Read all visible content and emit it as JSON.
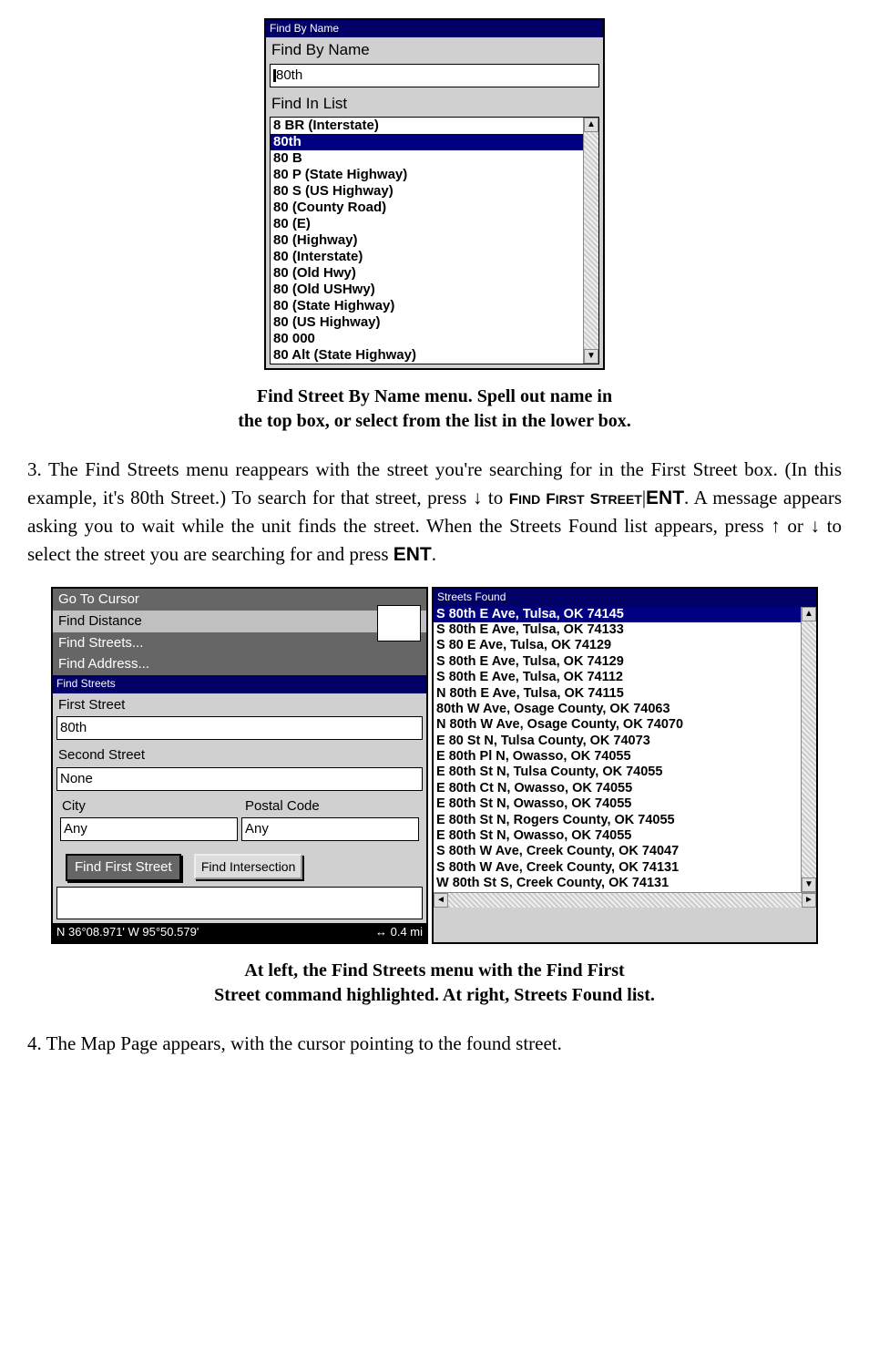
{
  "findByName": {
    "title": "Find By Name",
    "heading": "Find By Name",
    "input": "80th",
    "listLabel": "Find In List",
    "items": [
      {
        "t": "8 BR (Interstate)",
        "sel": false
      },
      {
        "t": "80th",
        "sel": true
      },
      {
        "t": "80  B",
        "sel": false
      },
      {
        "t": "80  P (State Highway)",
        "sel": false
      },
      {
        "t": "80  S (US Highway)",
        "sel": false
      },
      {
        "t": "80 (County Road)",
        "sel": false
      },
      {
        "t": "80 (E)",
        "sel": false
      },
      {
        "t": "80 (Highway)",
        "sel": false
      },
      {
        "t": "80 (Interstate)",
        "sel": false
      },
      {
        "t": "80 (Old Hwy)",
        "sel": false
      },
      {
        "t": "80 (Old USHwy)",
        "sel": false
      },
      {
        "t": "80 (State Highway)",
        "sel": false
      },
      {
        "t": "80 (US Highway)",
        "sel": false
      },
      {
        "t": "80 000",
        "sel": false
      },
      {
        "t": "80 Alt (State Highway)",
        "sel": false
      }
    ]
  },
  "caption1_l1": "Find Street By Name menu. Spell out name in",
  "caption1_l2": "the top box, or select from the list in the lower box.",
  "para3_a": "3. The Find Streets menu reappears with the street you're searching for in the First Street box. (In this example, it's 80th Street.) To search for that street, press ↓ to ",
  "para3_key1a": "F",
  "para3_key1b": "IND",
  "para3_key2a": " F",
  "para3_key2b": "IRST",
  "para3_key3a": " S",
  "para3_key3b": "TREET",
  "para3_b": "|",
  "para3_key4": "ENT",
  "para3_c": ".  A message appears asking you to wait while the unit finds the street. When the Streets Found list appears, press ↑ or ↓ to select the street you are searching for and press ",
  "para3_key5": "ENT",
  "para3_d": ".",
  "findStreets": {
    "menuItems": [
      {
        "t": "Go To Cursor",
        "cls": "highlight"
      },
      {
        "t": "Find Distance",
        "cls": ""
      },
      {
        "t": "Find Streets...",
        "cls": "highlight"
      },
      {
        "t": "Find Address...",
        "cls": "highlight"
      }
    ],
    "panelTitle": "Find Streets",
    "firstStreetLabel": "First Street",
    "firstStreetValue": "80th",
    "secondStreetLabel": "Second Street",
    "secondStreetValue": "None",
    "cityLabel": "City",
    "postalLabel": "Postal Code",
    "cityValue": "Any",
    "postalValue": "Any",
    "findFirstBtn": "Find First Street",
    "findIntersectBtn": "Find Intersection",
    "statusLeft": "N    36°08.971'    W    95°50.579'",
    "statusRight": "↔     0.4 mi"
  },
  "streetsFound": {
    "title": "Streets Found",
    "items": [
      {
        "t": "S 80th E Ave, Tulsa, OK 74145",
        "sel": true
      },
      {
        "t": "S 80th E Ave, Tulsa, OK 74133",
        "sel": false
      },
      {
        "t": "S 80 E Ave, Tulsa, OK 74129",
        "sel": false
      },
      {
        "t": "S 80th E Ave, Tulsa, OK 74129",
        "sel": false
      },
      {
        "t": "S 80th E Ave, Tulsa, OK 74112",
        "sel": false
      },
      {
        "t": "N 80th E Ave, Tulsa, OK 74115",
        "sel": false
      },
      {
        "t": "80th W Ave, Osage County, OK 74063",
        "sel": false
      },
      {
        "t": "N 80th W Ave, Osage County, OK 74070",
        "sel": false
      },
      {
        "t": "E 80 St N, Tulsa County, OK 74073",
        "sel": false
      },
      {
        "t": "E 80th Pl N, Owasso, OK 74055",
        "sel": false
      },
      {
        "t": "E 80th St N, Tulsa County, OK 74055",
        "sel": false
      },
      {
        "t": "E 80th Ct N, Owasso, OK 74055",
        "sel": false
      },
      {
        "t": "E 80th St N, Owasso, OK 74055",
        "sel": false
      },
      {
        "t": "E 80th St N, Rogers County, OK 74055",
        "sel": false
      },
      {
        "t": "E 80th St N, Owasso, OK 74055",
        "sel": false
      },
      {
        "t": "S 80th W Ave, Creek County, OK 74047",
        "sel": false
      },
      {
        "t": "S 80th W Ave, Creek County, OK 74131",
        "sel": false
      },
      {
        "t": "W 80th St S, Creek County, OK 74131",
        "sel": false
      }
    ]
  },
  "caption2_l1": "At left, the Find Streets menu with the Find First",
  "caption2_l2": "Street command highlighted. At right, Streets Found list.",
  "para4": "4. The Map Page appears, with the cursor pointing to the found street."
}
